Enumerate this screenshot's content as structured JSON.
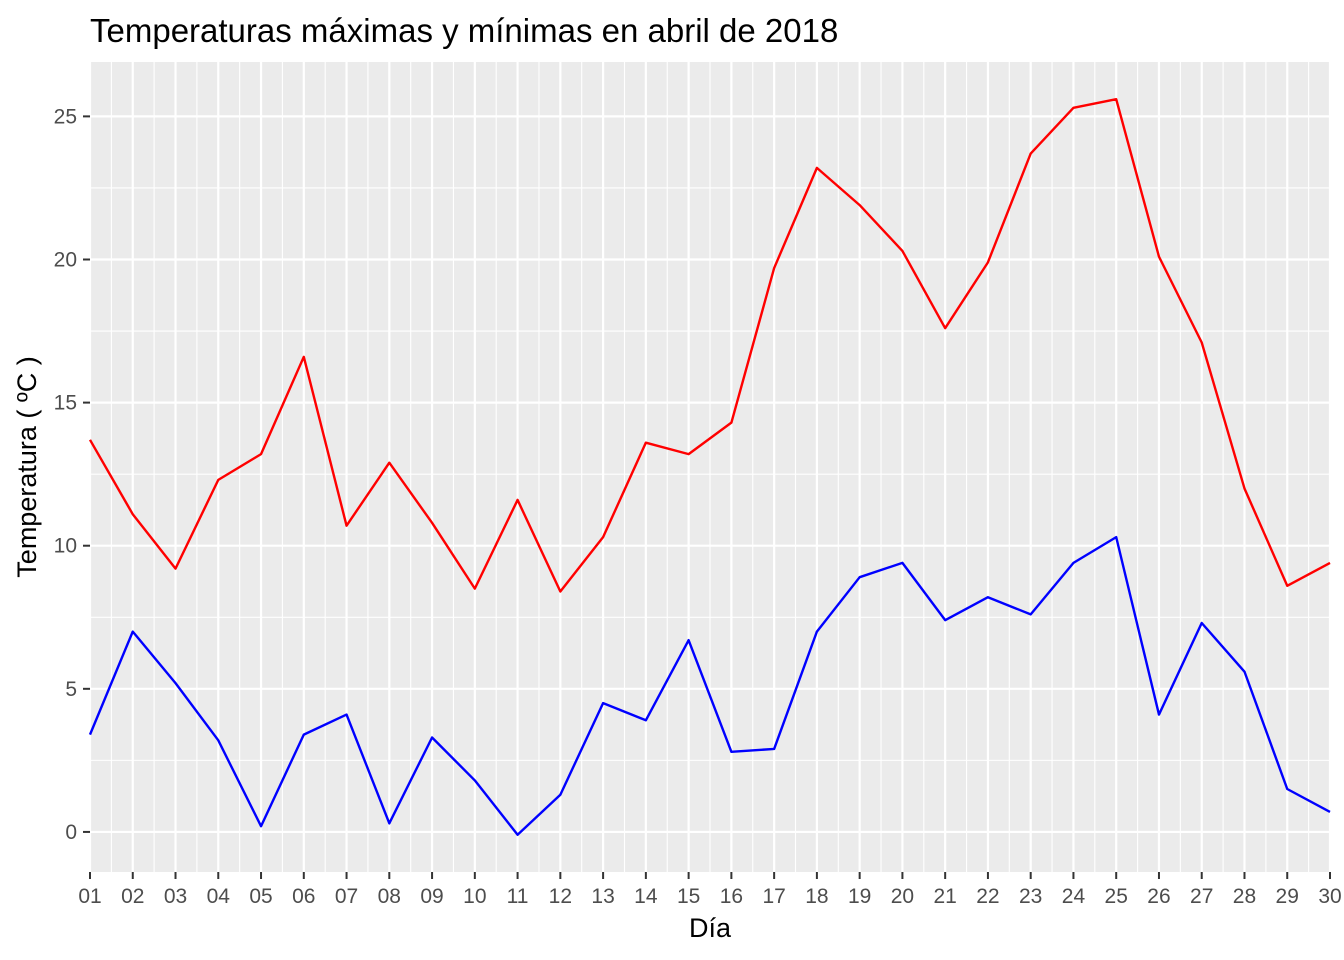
{
  "chart_data": {
    "type": "line",
    "title": "Temperaturas máximas y mínimas en abril de 2018",
    "xlabel": "Día",
    "ylabel": "Temperatura ( ºC )",
    "categories": [
      "01",
      "02",
      "03",
      "04",
      "05",
      "06",
      "07",
      "08",
      "09",
      "10",
      "11",
      "12",
      "13",
      "14",
      "15",
      "16",
      "17",
      "18",
      "19",
      "20",
      "21",
      "22",
      "23",
      "24",
      "25",
      "26",
      "27",
      "28",
      "29",
      "30"
    ],
    "y_ticks": [
      "0",
      "5",
      "10",
      "15",
      "20",
      "25"
    ],
    "ylim": [
      -1.4,
      26.9
    ],
    "grid": true,
    "legend": "none",
    "series": [
      {
        "color": "#ff0000",
        "values": [
          13.7,
          11.1,
          9.2,
          12.3,
          13.2,
          16.6,
          10.7,
          12.9,
          10.8,
          8.5,
          11.6,
          8.4,
          10.3,
          13.6,
          13.2,
          14.3,
          19.7,
          23.2,
          21.9,
          20.3,
          17.6,
          19.9,
          23.7,
          25.3,
          25.6,
          20.1,
          17.1,
          12.0,
          8.6,
          9.4
        ]
      },
      {
        "color": "#0000ff",
        "values": [
          3.4,
          7.0,
          5.2,
          3.2,
          0.2,
          3.4,
          4.1,
          0.3,
          3.3,
          1.8,
          -0.1,
          1.3,
          4.5,
          3.9,
          6.7,
          2.8,
          2.9,
          7.0,
          8.9,
          9.4,
          7.4,
          8.2,
          7.6,
          9.4,
          10.3,
          4.1,
          7.3,
          5.6,
          1.5,
          0.7
        ]
      }
    ]
  }
}
